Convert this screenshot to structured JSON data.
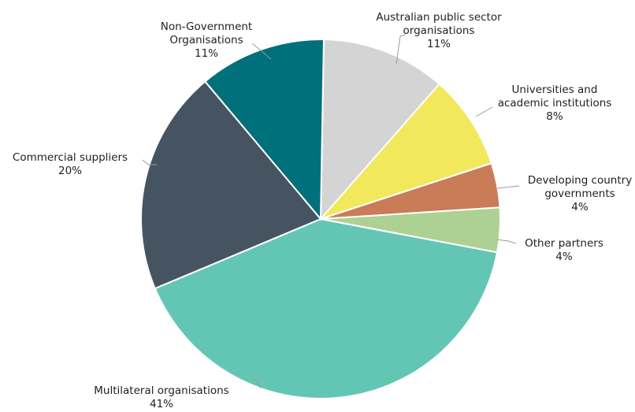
{
  "chart_data": {
    "type": "pie",
    "start_angle_deg": 1,
    "direction": "clockwise",
    "slices": [
      {
        "key": "aus-public",
        "name_lines": [
          "Australian public sector",
          "organisations"
        ],
        "pct_label": "11%",
        "value": 11.2,
        "color": "#d3d4d3"
      },
      {
        "key": "universities",
        "name_lines": [
          "Universities and",
          "academic institutions"
        ],
        "pct_label": "8%",
        "value": 8.5,
        "color": "#f1e85c"
      },
      {
        "key": "developing-gov",
        "name_lines": [
          "Developing country",
          "governments"
        ],
        "pct_label": "4%",
        "value": 4.0,
        "color": "#c97c57"
      },
      {
        "key": "other-partners",
        "name_lines": [
          "Other partners"
        ],
        "pct_label": "4%",
        "value": 4.0,
        "color": "#add192"
      },
      {
        "key": "multilateral",
        "name_lines": [
          "Multilateral organisations"
        ],
        "pct_label": "41%",
        "value": 40.7,
        "color": "#63c6b5"
      },
      {
        "key": "commercial",
        "name_lines": [
          "Commercial suppliers"
        ],
        "pct_label": "20%",
        "value": 20.2,
        "color": "#465462"
      },
      {
        "key": "ngo",
        "name_lines": [
          "Non-Government",
          "Organisations"
        ],
        "pct_label": "11%",
        "value": 11.4,
        "color": "#00707a"
      }
    ]
  }
}
